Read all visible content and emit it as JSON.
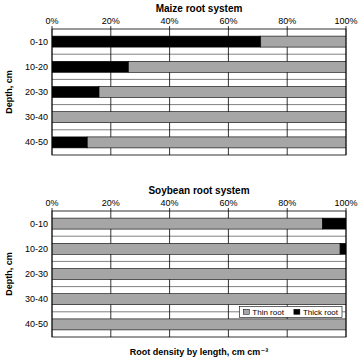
{
  "chart_data": [
    {
      "type": "bar",
      "title": "Maize root system",
      "orientation": "horizontal",
      "stacked": true,
      "y_label": "Depth, cm",
      "categories": [
        "0-10",
        "10-20",
        "20-30",
        "30-40",
        "40-50"
      ],
      "series": [
        {
          "name": "Thick root",
          "color": "#000000",
          "values": [
            71,
            26,
            16,
            0,
            12
          ]
        },
        {
          "name": "Thin root",
          "color": "#a6a6a6",
          "values": [
            29,
            74,
            84,
            100,
            88
          ]
        }
      ],
      "xlim": [
        0,
        100
      ],
      "xticks": [
        {
          "value": 0,
          "label": "0%"
        },
        {
          "value": 20,
          "label": "20%"
        },
        {
          "value": 40,
          "label": "40%"
        },
        {
          "value": 60,
          "label": "60%"
        },
        {
          "value": 80,
          "label": "80%"
        },
        {
          "value": 100,
          "label": "100%"
        }
      ],
      "grid": true
    },
    {
      "type": "bar",
      "title": "Soybean root system",
      "orientation": "horizontal",
      "stacked": true,
      "y_label": "Depth, cm",
      "x_label": "Root density by length, cm cm⁻³",
      "categories": [
        "0-10",
        "10-20",
        "20-30",
        "30-40",
        "40-50"
      ],
      "series": [
        {
          "name": "Thin root",
          "color": "#a6a6a6",
          "values": [
            92,
            98,
            100,
            100,
            100
          ]
        },
        {
          "name": "Thick root",
          "color": "#000000",
          "values": [
            8,
            2,
            0,
            0,
            0
          ]
        }
      ],
      "xlim": [
        0,
        100
      ],
      "xticks": [
        {
          "value": 0,
          "label": "0%"
        },
        {
          "value": 20,
          "label": "20%"
        },
        {
          "value": 40,
          "label": "40%"
        },
        {
          "value": 60,
          "label": "60%"
        },
        {
          "value": 80,
          "label": "80%"
        },
        {
          "value": 100,
          "label": "100%"
        }
      ],
      "grid": true,
      "legend": "bottom-right"
    }
  ]
}
